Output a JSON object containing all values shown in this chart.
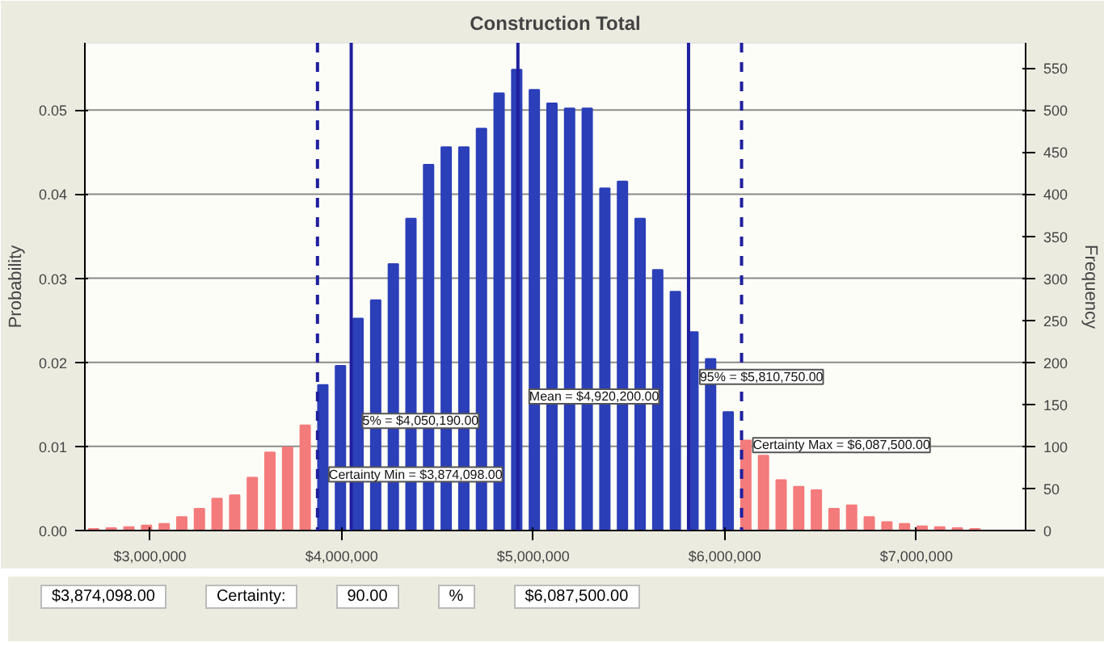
{
  "chart_data": {
    "type": "histogram",
    "title": "Construction Total",
    "ylabel": "Probability",
    "y2label": "Frequency",
    "bins": [
      2660000,
      2752000,
      2844000,
      2936000,
      3028000,
      3120000,
      3212000,
      3304000,
      3396000,
      3488000,
      3580000,
      3672000,
      3764000,
      3856000,
      3948000,
      4040000,
      4132000,
      4224000,
      4316000,
      4408000,
      4500000,
      4592000,
      4684000,
      4776000,
      4868000,
      4960000,
      5052000,
      5144000,
      5236000,
      5328000,
      5420000,
      5512000,
      5604000,
      5696000,
      5788000,
      5880000,
      5972000,
      6064000,
      6156000,
      6248000,
      6340000,
      6432000,
      6524000,
      6616000,
      6708000,
      6800000,
      6892000,
      6984000,
      7076000,
      7168000,
      7260000,
      7352000
    ],
    "values": [
      0.0002,
      0.0003,
      0.0004,
      0.0006,
      0.0008,
      0.0016,
      0.0026,
      0.0038,
      0.0042,
      0.0063,
      0.0093,
      0.0099,
      0.0125,
      0.0173,
      0.0196,
      0.0252,
      0.0274,
      0.0317,
      0.0371,
      0.0435,
      0.0456,
      0.0456,
      0.0478,
      0.052,
      0.0548,
      0.0524,
      0.0508,
      0.0502,
      0.0502,
      0.0407,
      0.0415,
      0.0371,
      0.031,
      0.0284,
      0.0236,
      0.0204,
      0.0141,
      0.0107,
      0.0089,
      0.006,
      0.0052,
      0.0048,
      0.0026,
      0.003,
      0.0016,
      0.001,
      0.0008,
      0.0005,
      0.0004,
      0.0003,
      0.0002
    ],
    "colors": [
      "#f47b7b",
      "#f47b7b",
      "#f47b7b",
      "#f47b7b",
      "#f47b7b",
      "#f47b7b",
      "#f47b7b",
      "#f47b7b",
      "#f47b7b",
      "#f47b7b",
      "#f47b7b",
      "#f47b7b",
      "#f47b7b",
      "#2b3fb8",
      "#2b3fb8",
      "#2b3fb8",
      "#2b3fb8",
      "#2b3fb8",
      "#2b3fb8",
      "#2b3fb8",
      "#2b3fb8",
      "#2b3fb8",
      "#2b3fb8",
      "#2b3fb8",
      "#2b3fb8",
      "#2b3fb8",
      "#2b3fb8",
      "#2b3fb8",
      "#2b3fb8",
      "#2b3fb8",
      "#2b3fb8",
      "#2b3fb8",
      "#2b3fb8",
      "#2b3fb8",
      "#2b3fb8",
      "#2b3fb8",
      "#2b3fb8",
      "#f47b7b",
      "#f47b7b",
      "#f47b7b",
      "#f47b7b",
      "#f47b7b",
      "#f47b7b",
      "#f47b7b",
      "#f47b7b",
      "#f47b7b",
      "#f47b7b",
      "#f47b7b",
      "#f47b7b",
      "#f47b7b",
      "#f47b7b"
    ],
    "xlim": [
      2660000,
      7570000
    ],
    "xticks": [
      {
        "value": 3000000,
        "label": "$3,000,000"
      },
      {
        "value": 4000000,
        "label": "$4,000,000"
      },
      {
        "value": 5000000,
        "label": "$5,000,000"
      },
      {
        "value": 6000000,
        "label": "$6,000,000"
      },
      {
        "value": 7000000,
        "label": "$7,000,000"
      }
    ],
    "ylim": [
      0,
      0.058
    ],
    "yticks": [
      {
        "value": 0,
        "label": "0.00"
      },
      {
        "value": 0.01,
        "label": "0.01"
      },
      {
        "value": 0.02,
        "label": "0.02"
      },
      {
        "value": 0.03,
        "label": "0.03"
      },
      {
        "value": 0.04,
        "label": "0.04"
      },
      {
        "value": 0.05,
        "label": "0.05"
      }
    ],
    "y2lim": [
      0,
      580
    ],
    "y2ticks": [
      0,
      50,
      100,
      150,
      200,
      250,
      300,
      350,
      400,
      450,
      500,
      550
    ],
    "grid": "y",
    "ref_lines": [
      {
        "axis": "x",
        "value": 3874098,
        "label": "Certainty Min = $3,874,098.00",
        "color": "#1f1f9e",
        "line_style": "dashed"
      },
      {
        "axis": "x",
        "value": 4050190,
        "label": "5% = $4,050,190.00",
        "color": "#1f1f9e",
        "line_style": "solid"
      },
      {
        "axis": "x",
        "value": 4920200,
        "label": "Mean = $4,920,200.00",
        "color": "#1f1f9e",
        "line_style": "solid"
      },
      {
        "axis": "x",
        "value": 5810750,
        "label": "95% = $5,810,750.00",
        "color": "#1f1f9e",
        "line_style": "solid"
      },
      {
        "axis": "x",
        "value": 6087500,
        "label": "Certainty Max = $6,087,500.00",
        "color": "#1f1f9e",
        "line_style": "dashed"
      }
    ],
    "annotations": [
      "$3,874,098.00",
      "Certainty:",
      "90.00",
      "%",
      "$6,087,500.00"
    ]
  }
}
